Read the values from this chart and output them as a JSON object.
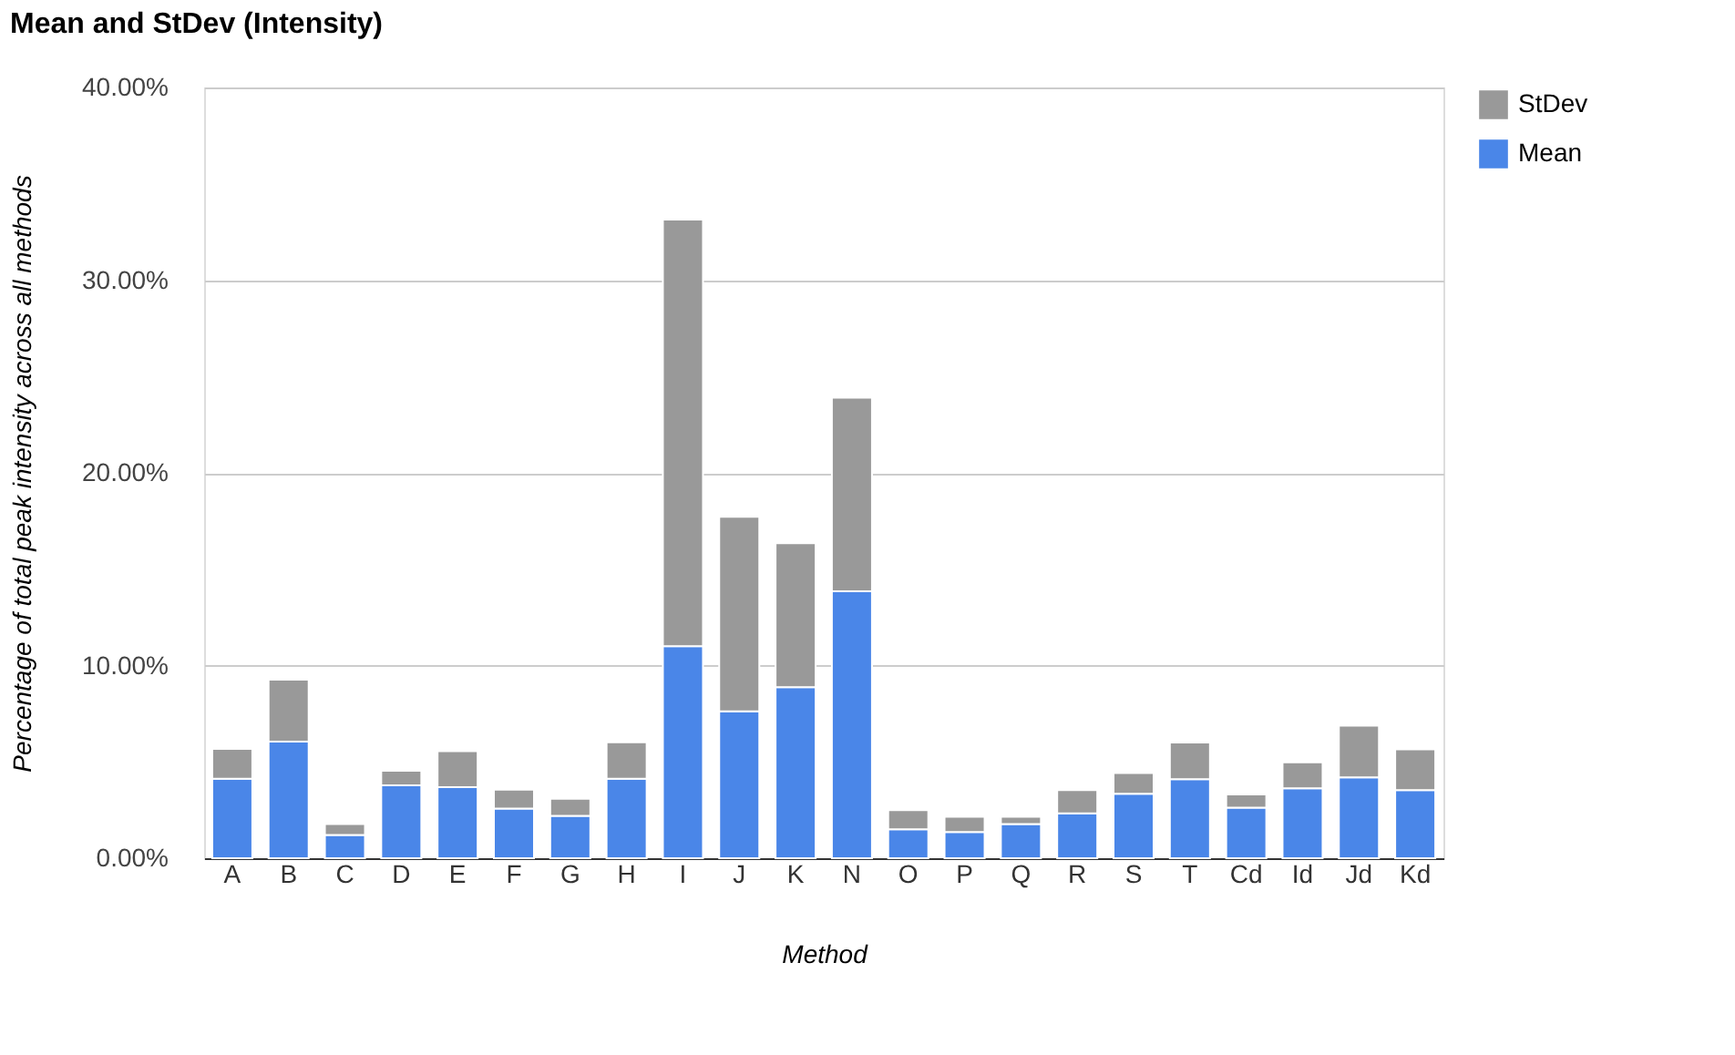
{
  "chart_data": {
    "type": "bar",
    "title": "Mean and StDev (Intensity)",
    "xlabel": "Method",
    "ylabel": "Percentage of total peak intensity across all methods",
    "categories": [
      "A",
      "B",
      "C",
      "D",
      "E",
      "F",
      "G",
      "H",
      "I",
      "J",
      "K",
      "N",
      "O",
      "P",
      "Q",
      "R",
      "S",
      "T",
      "Cd",
      "Id",
      "Jd",
      "Kd"
    ],
    "stacked": true,
    "series": [
      {
        "name": "Mean",
        "color": "#4a86e8",
        "values": [
          4.13,
          6.05,
          1.2,
          3.78,
          3.69,
          2.58,
          2.2,
          4.13,
          11.0,
          7.62,
          8.88,
          13.85,
          1.5,
          1.36,
          1.77,
          2.33,
          3.34,
          4.1,
          2.62,
          3.63,
          4.2,
          3.53
        ]
      },
      {
        "name": "StDev",
        "color": "#999999",
        "values": [
          1.54,
          3.22,
          0.57,
          0.76,
          1.86,
          0.98,
          0.89,
          1.89,
          22.15,
          10.1,
          7.47,
          10.05,
          1.0,
          0.79,
          0.38,
          1.2,
          1.08,
          1.9,
          0.69,
          1.35,
          2.68,
          2.12
        ]
      }
    ],
    "ylim": [
      0,
      40
    ],
    "yticks": [
      {
        "value": 0,
        "label": "0.00%"
      },
      {
        "value": 10,
        "label": "10.00%"
      },
      {
        "value": 20,
        "label": "20.00%"
      },
      {
        "value": 30,
        "label": "30.00%"
      },
      {
        "value": 40,
        "label": "40.00%"
      }
    ],
    "grid": "y",
    "legend": "top right"
  }
}
